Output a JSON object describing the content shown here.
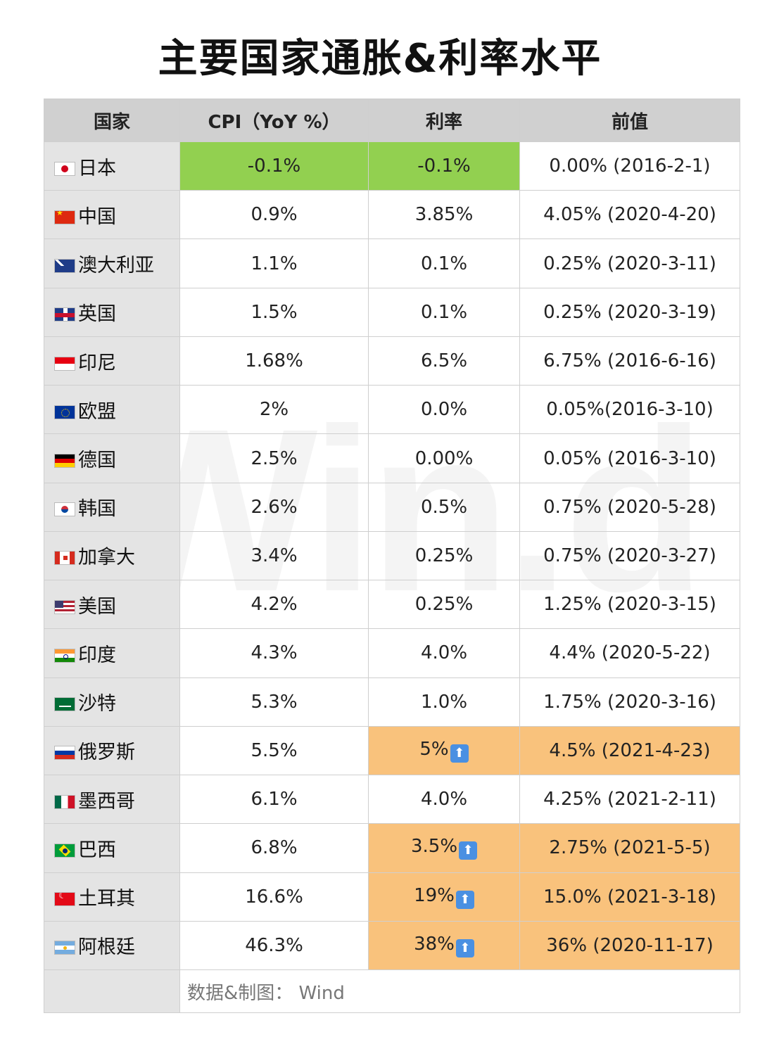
{
  "title": "主要国家通胀&利率水平",
  "watermark": "Wind",
  "table": {
    "headers": [
      "国家",
      "CPI（YoY %）",
      "利率",
      "前值"
    ],
    "colors": {
      "green": "#92d050",
      "orange": "#f9c27c",
      "header": "#d0d0d0",
      "country_col": "#e4e4e4",
      "up_arrow": "#4a90e2"
    },
    "rows": [
      {
        "country": "日本",
        "flag": "jp-flag-icon",
        "cpi": "-0.1%",
        "rate": "-0.1%",
        "prev": "0.00% (2016-2-1)",
        "highlight_cpi": "green",
        "highlight_rate": "green",
        "highlight_prev": "",
        "rate_up": false
      },
      {
        "country": "中国",
        "flag": "cn-flag-icon",
        "cpi": "0.9%",
        "rate": "3.85%",
        "prev": "4.05% (2020-4-20)",
        "highlight_cpi": "",
        "highlight_rate": "",
        "highlight_prev": "",
        "rate_up": false
      },
      {
        "country": "澳大利亚",
        "flag": "au-flag-icon",
        "cpi": "1.1%",
        "rate": "0.1%",
        "prev": "0.25% (2020-3-11)",
        "highlight_cpi": "",
        "highlight_rate": "",
        "highlight_prev": "",
        "rate_up": false
      },
      {
        "country": "英国",
        "flag": "uk-flag-icon",
        "cpi": "1.5%",
        "rate": "0.1%",
        "prev": "0.25% (2020-3-19)",
        "highlight_cpi": "",
        "highlight_rate": "",
        "highlight_prev": "",
        "rate_up": false
      },
      {
        "country": "印尼",
        "flag": "id-flag-icon",
        "cpi": "1.68%",
        "rate": "6.5%",
        "prev": "6.75% (2016-6-16)",
        "highlight_cpi": "",
        "highlight_rate": "",
        "highlight_prev": "",
        "rate_up": false
      },
      {
        "country": "欧盟",
        "flag": "eu-flag-icon",
        "cpi": "2%",
        "rate": "0.0%",
        "prev": "0.05%(2016-3-10)",
        "highlight_cpi": "",
        "highlight_rate": "",
        "highlight_prev": "",
        "rate_up": false
      },
      {
        "country": "德国",
        "flag": "de-flag-icon",
        "cpi": "2.5%",
        "rate": "0.00%",
        "prev": "0.05% (2016-3-10)",
        "highlight_cpi": "",
        "highlight_rate": "",
        "highlight_prev": "",
        "rate_up": false
      },
      {
        "country": "韩国",
        "flag": "kr-flag-icon",
        "cpi": "2.6%",
        "rate": "0.5%",
        "prev": "0.75% (2020-5-28)",
        "highlight_cpi": "",
        "highlight_rate": "",
        "highlight_prev": "",
        "rate_up": false
      },
      {
        "country": "加拿大",
        "flag": "ca-flag-icon",
        "cpi": "3.4%",
        "rate": "0.25%",
        "prev": "0.75% (2020-3-27)",
        "highlight_cpi": "",
        "highlight_rate": "",
        "highlight_prev": "",
        "rate_up": false
      },
      {
        "country": "美国",
        "flag": "us-flag-icon",
        "cpi": "4.2%",
        "rate": "0.25%",
        "prev": "1.25% (2020-3-15)",
        "highlight_cpi": "",
        "highlight_rate": "",
        "highlight_prev": "",
        "rate_up": false
      },
      {
        "country": "印度",
        "flag": "in-flag-icon",
        "cpi": "4.3%",
        "rate": "4.0%",
        "prev": "4.4% (2020-5-22)",
        "highlight_cpi": "",
        "highlight_rate": "",
        "highlight_prev": "",
        "rate_up": false
      },
      {
        "country": "沙特",
        "flag": "sa-flag-icon",
        "cpi": "5.3%",
        "rate": "1.0%",
        "prev": "1.75% (2020-3-16)",
        "highlight_cpi": "",
        "highlight_rate": "",
        "highlight_prev": "",
        "rate_up": false
      },
      {
        "country": "俄罗斯",
        "flag": "ru-flag-icon",
        "cpi": "5.5%",
        "rate": "5%",
        "prev": "4.5% (2021-4-23)",
        "highlight_cpi": "",
        "highlight_rate": "orange",
        "highlight_prev": "orange",
        "rate_up": true
      },
      {
        "country": "墨西哥",
        "flag": "mx-flag-icon",
        "cpi": "6.1%",
        "rate": "4.0%",
        "prev": "4.25% (2021-2-11)",
        "highlight_cpi": "",
        "highlight_rate": "",
        "highlight_prev": "",
        "rate_up": false
      },
      {
        "country": "巴西",
        "flag": "br-flag-icon",
        "cpi": "6.8%",
        "rate": "3.5%",
        "prev": "2.75% (2021-5-5)",
        "highlight_cpi": "",
        "highlight_rate": "orange",
        "highlight_prev": "orange",
        "rate_up": true
      },
      {
        "country": "土耳其",
        "flag": "tr-flag-icon",
        "cpi": "16.6%",
        "rate": "19%",
        "prev": "15.0% (2021-3-18)",
        "highlight_cpi": "",
        "highlight_rate": "orange",
        "highlight_prev": "orange",
        "rate_up": true
      },
      {
        "country": "阿根廷",
        "flag": "ar-flag-icon",
        "cpi": "46.3%",
        "rate": "38%",
        "prev": "36% (2020-11-17)",
        "highlight_cpi": "",
        "highlight_rate": "orange",
        "highlight_prev": "orange",
        "rate_up": true
      }
    ],
    "source": "数据&制图： Wind",
    "up_arrow_icon": "up-arrow-icon"
  }
}
